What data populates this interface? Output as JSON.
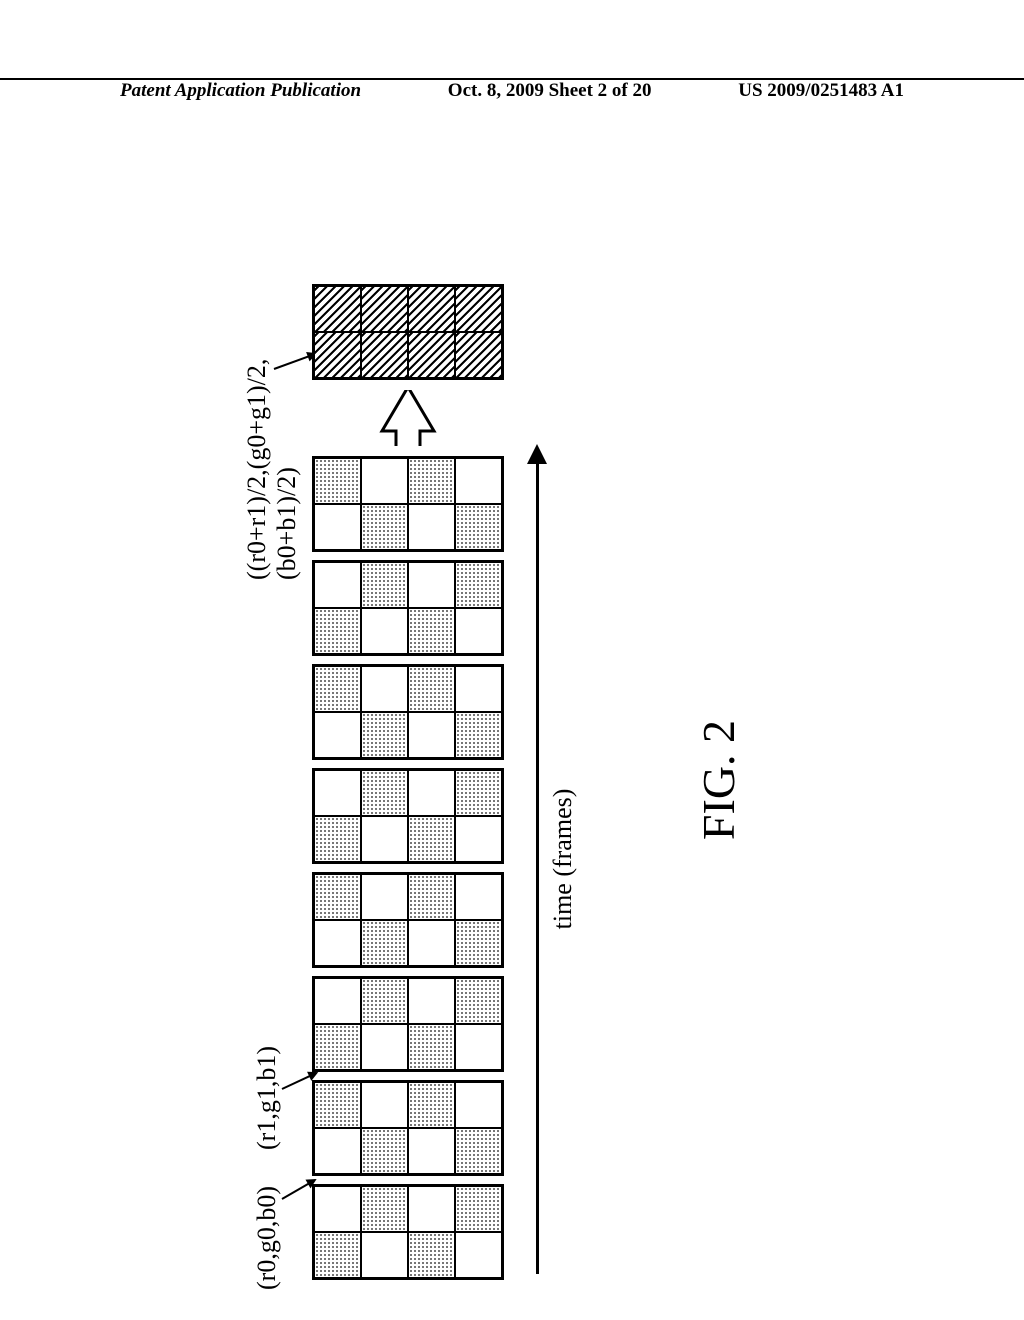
{
  "header": {
    "left": "Patent Application Publication",
    "center": "Oct. 8, 2009  Sheet 2 of 20",
    "right": "US 2009/0251483 A1"
  },
  "figure": {
    "label": "FIG. 2",
    "time_axis_label": "time (frames)",
    "callouts": {
      "c0": "(r0,g0,b0)",
      "c1": "(r1,g1,b1)",
      "avg": "((r0+r1)/2,(g0+g1)/2,(b0+b1)/2)"
    },
    "grid": {
      "cols": 2,
      "rows": 4
    },
    "colors": {
      "line": "#000000",
      "halftone": "#555555",
      "background": "#ffffff"
    },
    "frames": [
      {
        "pattern": "A"
      },
      {
        "pattern": "B"
      },
      {
        "pattern": "A"
      },
      {
        "pattern": "B"
      },
      {
        "pattern": "A"
      },
      {
        "pattern": "B"
      },
      {
        "pattern": "A"
      },
      {
        "pattern": "B"
      }
    ],
    "pattern_legend": {
      "A_halftone_cells": [
        0,
        3,
        4,
        7
      ],
      "B_halftone_cells": [
        1,
        2,
        5,
        6
      ]
    },
    "result_fill": "hatch"
  }
}
